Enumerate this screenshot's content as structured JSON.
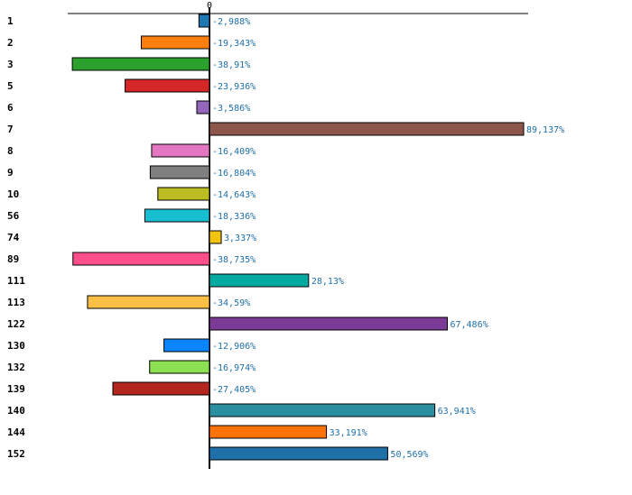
{
  "chart_data": {
    "type": "bar",
    "orientation": "horizontal",
    "title": "",
    "xlabel": "",
    "ylabel": "",
    "xlim": [
      -45,
      90
    ],
    "zero_tick_label": "0",
    "value_suffix": "%",
    "decimal_separator": ",",
    "categories": [
      "1",
      "2",
      "3",
      "5",
      "6",
      "7",
      "8",
      "9",
      "10",
      "56",
      "74",
      "89",
      "111",
      "113",
      "122",
      "130",
      "132",
      "139",
      "140",
      "144",
      "152"
    ],
    "values": [
      -2.988,
      -19.343,
      -38.91,
      -23.936,
      -3.586,
      89.137,
      -16.409,
      -16.804,
      -14.643,
      -18.336,
      3.337,
      -38.735,
      28.13,
      -34.59,
      67.486,
      -12.906,
      -16.974,
      -27.405,
      63.941,
      33.191,
      50.569
    ],
    "value_labels": [
      "-2,988%",
      "-19,343%",
      "-38,91%",
      "-23,936%",
      "-3,586%",
      "89,137%",
      "-16,409%",
      "-16,804%",
      "-14,643%",
      "-18,336%",
      "3,337%",
      "-38,735%",
      "28,13%",
      "-34,59%",
      "67,486%",
      "-12,906%",
      "-16,974%",
      "-27,405%",
      "63,941%",
      "33,191%",
      "50,569%"
    ],
    "colors": [
      "#1f77b4",
      "#ff7f0e",
      "#2ca02c",
      "#d62728",
      "#9467bd",
      "#8c564b",
      "#e377c2",
      "#7f7f7f",
      "#bcbd22",
      "#17becf",
      "#f2c40f",
      "#ff4f8b",
      "#00aaa0",
      "#fbbf45",
      "#7b3a96",
      "#0a84ff",
      "#8ee053",
      "#b3261e",
      "#2a8fa0",
      "#ff7208",
      "#1f6fa8"
    ],
    "value_label_color": "#1f6fa8"
  }
}
